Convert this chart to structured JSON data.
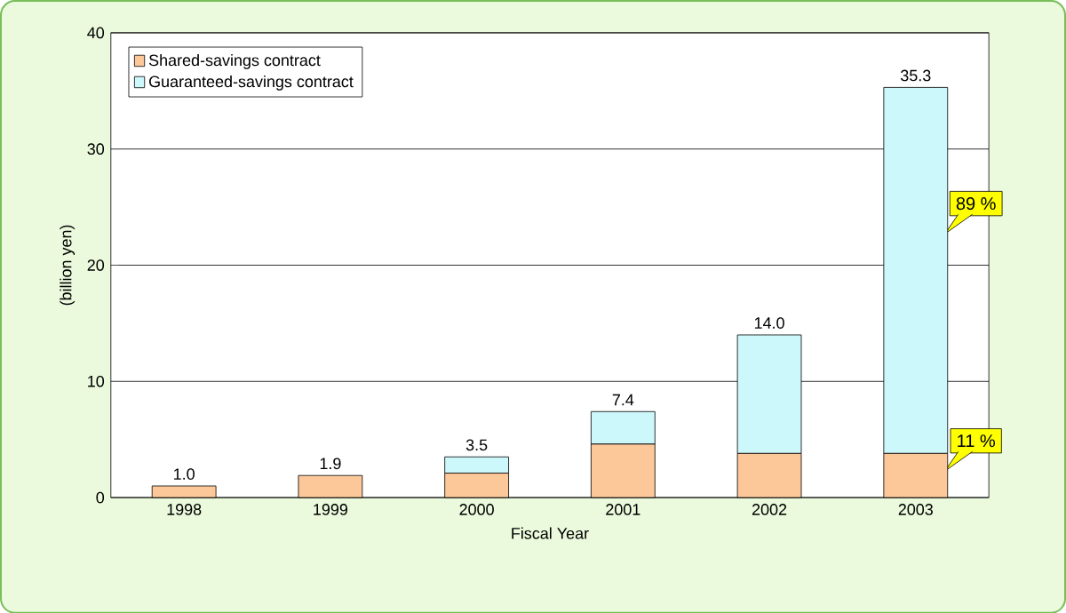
{
  "chart_data": {
    "type": "bar",
    "stacked": true,
    "xlabel": "Fiscal Year",
    "ylabel": "(billion yen)",
    "categories": [
      "1998",
      "1999",
      "2000",
      "2001",
      "2002",
      "2003"
    ],
    "series": [
      {
        "name": "Shared-savings contract",
        "color": "#fcc89a",
        "values": [
          1.0,
          1.9,
          2.1,
          4.6,
          3.8,
          3.8
        ]
      },
      {
        "name": "Guaranteed-savings contract",
        "color": "#ccf8fc",
        "values": [
          0,
          0,
          1.4,
          2.8,
          10.2,
          31.5
        ]
      }
    ],
    "totals": [
      "1.0",
      "1.9",
      "3.5",
      "7.4",
      "14.0",
      "35.3"
    ],
    "annotations": [
      "89 %",
      "11 %"
    ],
    "ylim": [
      0,
      40
    ],
    "yticks": [
      0,
      10,
      20,
      30,
      40
    ],
    "grid": "y",
    "legend": "top left"
  }
}
